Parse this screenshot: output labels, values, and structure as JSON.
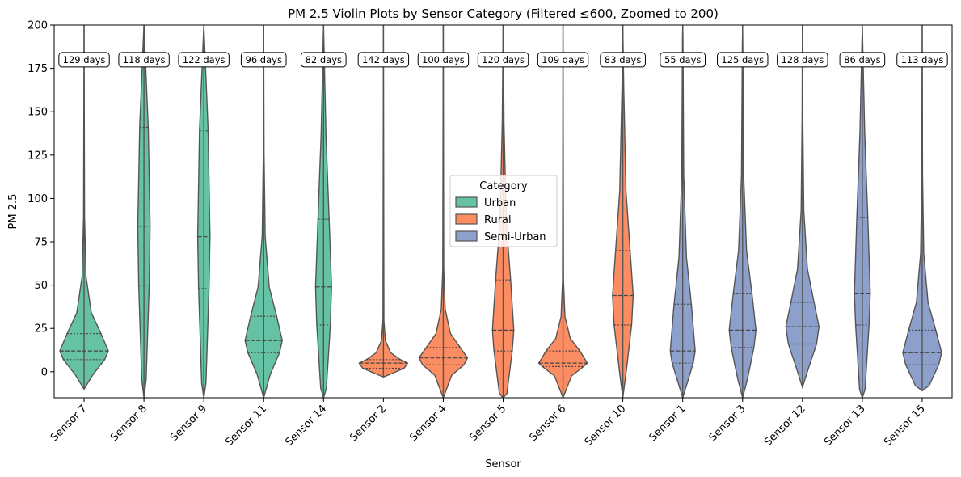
{
  "chart_data": {
    "type": "violin",
    "title": "PM 2.5 Violin Plots by Sensor Category (Filtered ≤600, Zoomed to 200)",
    "xlabel": "Sensor",
    "ylabel": "PM 2.5",
    "ylim": [
      -15,
      200
    ],
    "yticks": [
      0,
      25,
      50,
      75,
      100,
      125,
      150,
      175,
      200
    ],
    "legend": {
      "title": "Category",
      "placement": "center",
      "entries": [
        {
          "name": "Urban",
          "color": "#66c2a5"
        },
        {
          "name": "Rural",
          "color": "#fc8d62"
        },
        {
          "name": "Semi-Urban",
          "color": "#8da0cb"
        }
      ]
    },
    "sensors": [
      {
        "name": "Sensor 7",
        "category": "Urban",
        "days_label": "129 days",
        "q1": 7,
        "median": 12,
        "q3": 22,
        "min": -10,
        "max": 200
      },
      {
        "name": "Sensor 8",
        "category": "Urban",
        "days_label": "118 days",
        "q1": 50,
        "median": 84,
        "q3": 141,
        "min": -15,
        "max": 200
      },
      {
        "name": "Sensor 9",
        "category": "Urban",
        "days_label": "122 days",
        "q1": 48,
        "median": 78,
        "q3": 139,
        "min": -15,
        "max": 200
      },
      {
        "name": "Sensor 11",
        "category": "Urban",
        "days_label": "96 days",
        "q1": 11,
        "median": 18,
        "q3": 32,
        "min": -15,
        "max": 200
      },
      {
        "name": "Sensor 14",
        "category": "Urban",
        "days_label": "82 days",
        "q1": 27,
        "median": 49,
        "q3": 88,
        "min": -15,
        "max": 200
      },
      {
        "name": "Sensor 2",
        "category": "Rural",
        "days_label": "142 days",
        "q1": 2,
        "median": 5,
        "q3": 7,
        "min": -3,
        "max": 200
      },
      {
        "name": "Sensor 4",
        "category": "Rural",
        "days_label": "100 days",
        "q1": 4,
        "median": 8,
        "q3": 14,
        "min": -15,
        "max": 200
      },
      {
        "name": "Sensor 5",
        "category": "Rural",
        "days_label": "120 days",
        "q1": 12,
        "median": 24,
        "q3": 53,
        "min": -15,
        "max": 200
      },
      {
        "name": "Sensor 6",
        "category": "Rural",
        "days_label": "109 days",
        "q1": 3,
        "median": 5,
        "q3": 12,
        "min": -15,
        "max": 200
      },
      {
        "name": "Sensor 10",
        "category": "Rural",
        "days_label": "83 days",
        "q1": 27,
        "median": 44,
        "q3": 70,
        "min": -15,
        "max": 200
      },
      {
        "name": "Sensor 1",
        "category": "Semi-Urban",
        "days_label": "55 days",
        "q1": 5,
        "median": 12,
        "q3": 39,
        "min": -15,
        "max": 200
      },
      {
        "name": "Sensor 3",
        "category": "Semi-Urban",
        "days_label": "125 days",
        "q1": 14,
        "median": 24,
        "q3": 45,
        "min": -15,
        "max": 200
      },
      {
        "name": "Sensor 12",
        "category": "Semi-Urban",
        "days_label": "128 days",
        "q1": 16,
        "median": 26,
        "q3": 40,
        "min": -9,
        "max": 200
      },
      {
        "name": "Sensor 13",
        "category": "Semi-Urban",
        "days_label": "86 days",
        "q1": 27,
        "median": 45,
        "q3": 89,
        "min": -15,
        "max": 200
      },
      {
        "name": "Sensor 15",
        "category": "Semi-Urban",
        "days_label": "113 days",
        "q1": 4,
        "median": 11,
        "q3": 24,
        "min": -11,
        "max": 200
      }
    ],
    "colors": {
      "axis": "#000000",
      "violin_edge": "#555555",
      "quartile_line": "#444444"
    }
  }
}
